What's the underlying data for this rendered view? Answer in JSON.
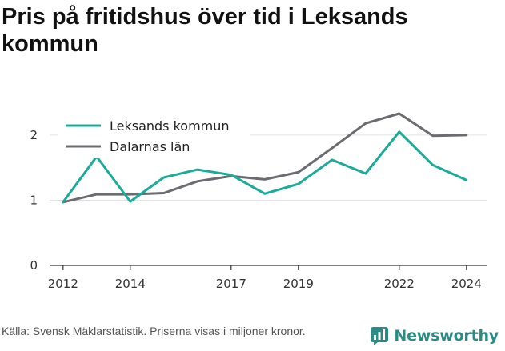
{
  "title": "Pris på fritidshus över tid i Leksands kommun",
  "source": "Källa: Svensk Mäklarstatistik. Priserna visas i miljoner kronor.",
  "brand": "Newsworthy",
  "colors": {
    "leksand": "#1aab9b",
    "dalarna": "#6c6b70",
    "brand": "#2a8c86"
  },
  "chart_data": {
    "type": "line",
    "x": [
      2012,
      2013,
      2014,
      2015,
      2016,
      2017,
      2018,
      2019,
      2020,
      2021,
      2022,
      2023,
      2024
    ],
    "xticks": [
      "2012",
      "2014",
      "2017",
      "2019",
      "2022",
      "2024"
    ],
    "yticks": [
      "0",
      "1",
      "2"
    ],
    "ylim": [
      0,
      2.6
    ],
    "xlim": [
      2011.6,
      2024.6
    ],
    "grid": true,
    "legend": "top-left",
    "series": [
      {
        "name": "Leksands kommun",
        "color": "#1aab9b",
        "values": [
          0.97,
          1.67,
          0.98,
          1.35,
          1.47,
          1.39,
          1.1,
          1.25,
          1.62,
          1.41,
          2.05,
          1.54,
          1.31
        ]
      },
      {
        "name": "Dalarnas län",
        "color": "#6c6b70",
        "values": [
          0.97,
          1.09,
          1.09,
          1.11,
          1.29,
          1.37,
          1.32,
          1.43,
          1.8,
          2.18,
          2.33,
          1.99,
          2.0
        ]
      }
    ]
  }
}
